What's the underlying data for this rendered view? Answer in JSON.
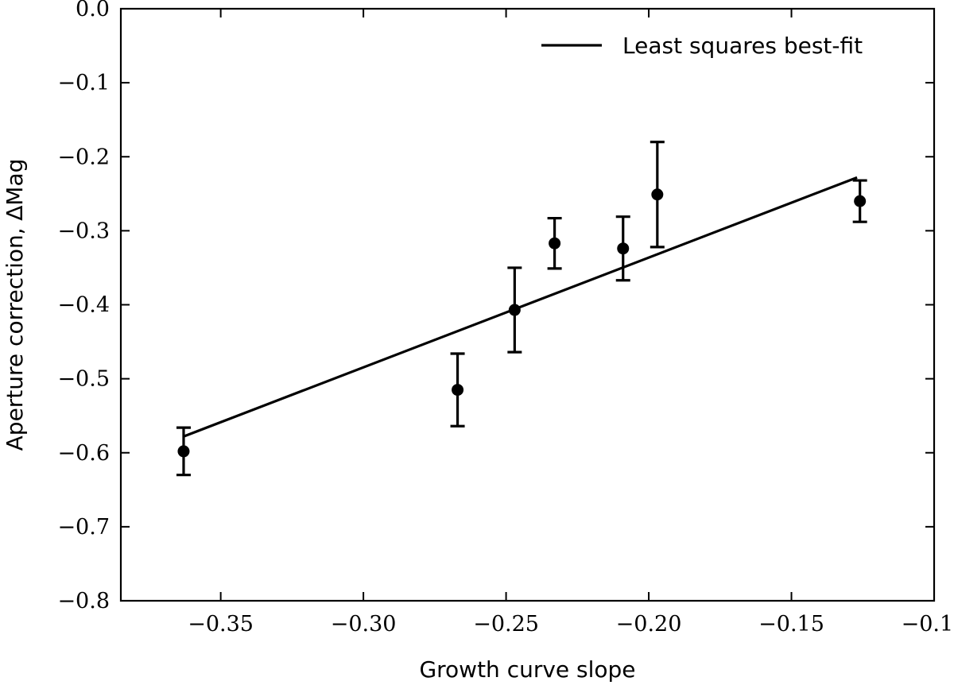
{
  "chart_data": {
    "type": "scatter",
    "xlabel": "Growth curve slope",
    "ylabel": "Aperture correction, ∆Mag",
    "xlim": [
      -0.385,
      -0.1
    ],
    "ylim": [
      -0.8,
      0.0
    ],
    "x_ticks": [
      -0.35,
      -0.3,
      -0.25,
      -0.2,
      -0.15,
      -0.1
    ],
    "x_tick_labels": [
      "−0.35",
      "−0.30",
      "−0.25",
      "−0.20",
      "−0.15",
      "−0.10"
    ],
    "y_ticks": [
      0.0,
      -0.1,
      -0.2,
      -0.3,
      -0.4,
      -0.5,
      -0.6,
      -0.7,
      -0.8
    ],
    "y_tick_labels": [
      "0.0",
      "−0.1",
      "−0.2",
      "−0.3",
      "−0.4",
      "−0.5",
      "−0.6",
      "−0.7",
      "−0.8"
    ],
    "grid": false,
    "legend_position": "top-right",
    "points": [
      {
        "x": -0.363,
        "y": -0.598,
        "err_low": 0.032,
        "err_high": 0.032
      },
      {
        "x": -0.267,
        "y": -0.515,
        "err_low": 0.049,
        "err_high": 0.049
      },
      {
        "x": -0.247,
        "y": -0.407,
        "err_low": 0.057,
        "err_high": 0.057
      },
      {
        "x": -0.233,
        "y": -0.317,
        "err_low": 0.034,
        "err_high": 0.034
      },
      {
        "x": -0.209,
        "y": -0.324,
        "err_low": 0.043,
        "err_high": 0.043
      },
      {
        "x": -0.197,
        "y": -0.251,
        "err_low": 0.071,
        "err_high": 0.071
      },
      {
        "x": -0.126,
        "y": -0.26,
        "err_low": 0.028,
        "err_high": 0.028
      }
    ],
    "fit_line": {
      "name": "Least squares best-fit",
      "x": [
        -0.363,
        -0.127
      ],
      "y": [
        -0.578,
        -0.228
      ]
    },
    "colors": {
      "line": "#000000",
      "marker": "#000000",
      "axes": "#000000",
      "background": "#ffffff"
    }
  }
}
